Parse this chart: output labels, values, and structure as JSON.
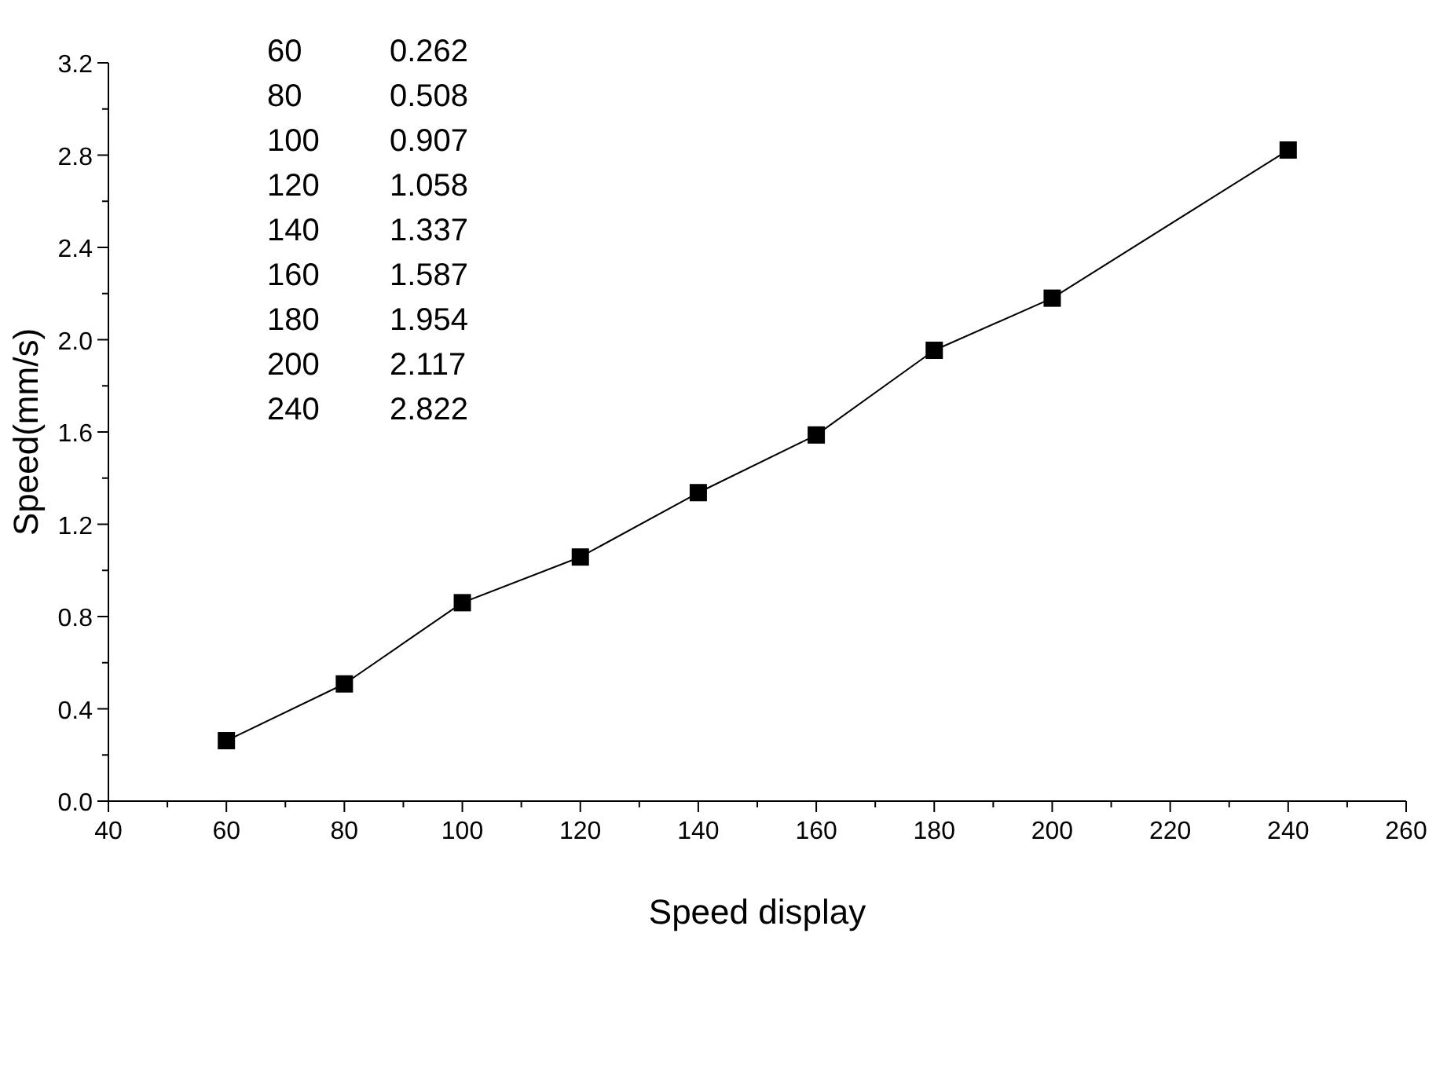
{
  "chart_data": {
    "type": "line",
    "xlabel": "Speed display",
    "ylabel": "Speed(mm/s)",
    "x": [
      60,
      80,
      100,
      120,
      140,
      160,
      180,
      200,
      240
    ],
    "values": [
      0.262,
      0.508,
      0.86,
      1.058,
      1.337,
      1.587,
      1.954,
      2.18,
      2.822
    ],
    "annotations": [
      "60",
      "0.262",
      "80",
      "0.508",
      "100",
      "0.907",
      "120",
      "1.058",
      "140",
      "1.337",
      "160",
      "1.587",
      "180",
      "1.954",
      "200",
      "2.117",
      "240",
      "2.822"
    ],
    "color": "#000000",
    "marker": "square",
    "line_style": "solid",
    "grid": false,
    "xlim": [
      40,
      260
    ],
    "xticks": [
      40,
      60,
      80,
      100,
      120,
      140,
      160,
      180,
      200,
      220,
      240,
      260
    ],
    "ylim": [
      0,
      3.2
    ],
    "yticks": [
      {
        "value": 0,
        "label": "0.0"
      },
      {
        "value": 0.4,
        "label": "0.4"
      },
      {
        "value": 0.8,
        "label": "0.8"
      },
      {
        "value": 1.2,
        "label": "1.2"
      },
      {
        "value": 1.6,
        "label": "1.6"
      },
      {
        "value": 2.0,
        "label": "2.0"
      },
      {
        "value": 2.4,
        "label": "2.4"
      },
      {
        "value": 2.8,
        "label": "2.8"
      },
      {
        "value": 3.2,
        "label": "3.2"
      }
    ]
  }
}
